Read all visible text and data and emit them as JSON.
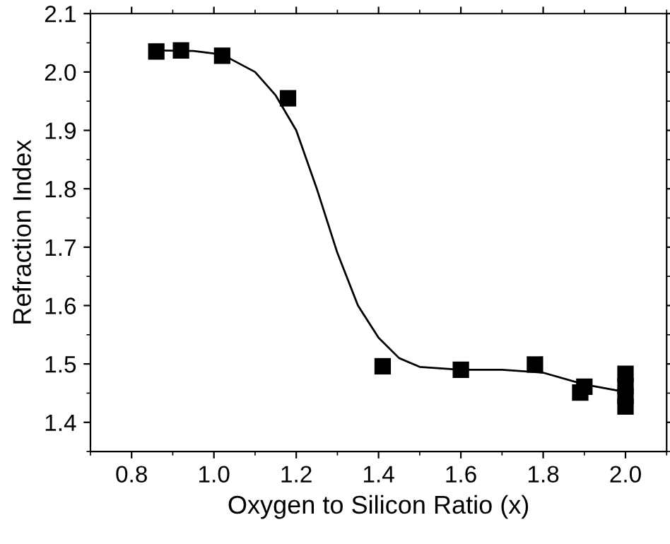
{
  "chart_data": {
    "type": "scatter",
    "xlabel": "Oxygen to Silicon Ratio (x)",
    "ylabel": "Refraction Index",
    "xlim": [
      0.7,
      2.1
    ],
    "xticks": [
      0.8,
      {
        "value": 1,
        "label": "1.0"
      },
      1.2,
      1.4,
      1.6,
      1.8,
      {
        "value": 2,
        "label": "2.0"
      }
    ],
    "ylim": [
      1.35,
      2.1
    ],
    "yticks": [
      1.4,
      1.5,
      1.6,
      1.7,
      1.8,
      1.9,
      {
        "value": 2,
        "label": "2.0"
      },
      2.1
    ],
    "grid": false,
    "legend": false,
    "marker": "square",
    "series": [
      {
        "color": "#000000",
        "x": [
          0.86,
          0.92,
          1.02,
          1.18,
          1.41,
          1.6,
          1.78,
          1.89,
          1.9,
          2.0,
          2.0,
          2.0,
          2.0
        ],
        "values": [
          2.035,
          2.037,
          2.028,
          1.955,
          1.496,
          1.49,
          1.499,
          1.451,
          1.461,
          1.483,
          1.462,
          1.445,
          1.427
        ]
      },
      {
        "type": "line",
        "color": "#000000",
        "marker": "none",
        "line_style": "solid",
        "x": [
          0.86,
          0.95,
          1.02,
          1.1,
          1.15,
          1.2,
          1.25,
          1.3,
          1.35,
          1.4,
          1.45,
          1.5,
          1.6,
          1.7,
          1.8,
          1.9,
          2.0
        ],
        "values": [
          2.037,
          2.036,
          2.03,
          2.0,
          1.96,
          1.9,
          1.8,
          1.69,
          1.6,
          1.545,
          1.51,
          1.495,
          1.49,
          1.49,
          1.485,
          1.465,
          1.452
        ]
      }
    ]
  }
}
